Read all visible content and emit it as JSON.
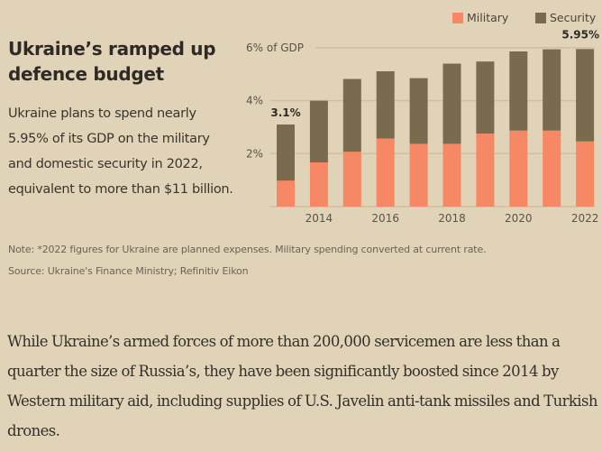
{
  "header": {
    "title": "Ukraine’s ramped up defence budget",
    "subtitle": "Ukraine plans to spend nearly 5.95% of its GDP on the military and domestic security in 2022, equivalent to more than $11 billion."
  },
  "footer": {
    "note": "Note: *2022 figures for Ukraine are planned expenses. Military spending converted at current rate.",
    "source": "Source: Ukraine's Finance Ministry; Refinitiv Eikon"
  },
  "article": {
    "paragraph": "While Ukraine’s armed forces of more than 200,000 servicemen are less than a quarter the size of Russia’s, they have been significantly boosted since 2014 by Western military aid, including supplies of U.S. Javelin anti-tank missiles and Turkish drones."
  },
  "colors": {
    "background": "#e0d3b8",
    "military": "#f78865",
    "security": "#7b6b4e",
    "gridline": "#cfbf9d"
  },
  "chart_data": {
    "type": "bar",
    "stacked": true,
    "title": "Ukraine’s ramped up defence budget",
    "xlabel": "",
    "ylabel": "% of GDP",
    "ylim": [
      0,
      6
    ],
    "yticks": [
      {
        "value": 2,
        "label": "2%"
      },
      {
        "value": 4,
        "label": "4%"
      },
      {
        "value": 6,
        "label": "6% of GDP"
      }
    ],
    "grid": true,
    "legend_position": "top-right",
    "categories": [
      2013,
      2014,
      2015,
      2016,
      2017,
      2018,
      2019,
      2020,
      2021,
      2022
    ],
    "xtick_labels": [
      "2014",
      "2016",
      "2018",
      "2020",
      "2022"
    ],
    "xtick_values": [
      2014,
      2016,
      2018,
      2020,
      2022
    ],
    "series": [
      {
        "name": "Military",
        "color": "#f78865",
        "values": [
          0.98,
          1.67,
          2.07,
          2.57,
          2.37,
          2.37,
          2.76,
          2.87,
          2.87,
          2.46
        ]
      },
      {
        "name": "Security",
        "color": "#7b6b4e",
        "values": [
          2.12,
          2.33,
          2.75,
          2.54,
          2.48,
          3.03,
          2.72,
          2.99,
          3.07,
          3.49
        ]
      }
    ],
    "totals": [
      3.1,
      4.0,
      4.82,
      5.11,
      4.85,
      5.4,
      5.48,
      5.86,
      5.94,
      5.95
    ],
    "annotations": [
      {
        "category": 2013,
        "label": "3.1%"
      },
      {
        "category": 2022,
        "label": "5.95%"
      }
    ]
  }
}
